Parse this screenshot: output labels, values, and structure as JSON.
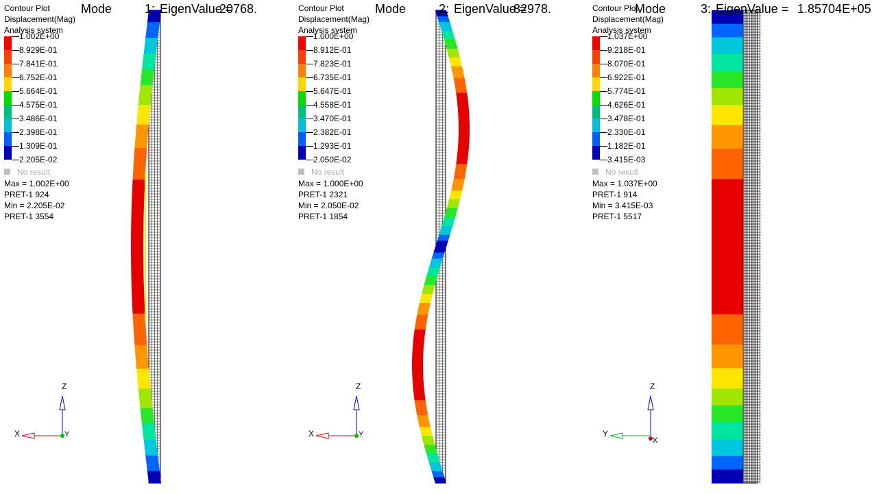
{
  "colors": {
    "contour_bands": [
      "#0000b4",
      "#0064ff",
      "#00c8dc",
      "#00e6a0",
      "#28e628",
      "#a0e600",
      "#ffe600",
      "#ff9600",
      "#ff6400",
      "#e60000"
    ],
    "legend_swatches": [
      "#ff0000",
      "#ff4000",
      "#ff8000",
      "#ffd700",
      "#00e000",
      "#00c080",
      "#00c0e0",
      "#0060ff",
      "#0000c0"
    ],
    "mesh_line": "#000000",
    "triad_x": "#e00000",
    "triad_y": "#00c000",
    "triad_z": "#0000ff"
  },
  "panels": [
    {
      "title": {
        "mode_word": "Mode",
        "mode_number": "1:",
        "eigen_label": "EigenValue =",
        "eigen_value": "20768."
      },
      "legend": {
        "header": [
          "Contour Plot",
          "Displacement(Mag)",
          "Analysis system"
        ],
        "values": [
          "1.002E+00",
          "8.929E-01",
          "7.841E-01",
          "6.752E-01",
          "5.664E-01",
          "4.575E-01",
          "3.486E-01",
          "2.398E-01",
          "1.309E-01",
          "2.205E-02"
        ],
        "no_result": "No result",
        "max": "Max = 1.002E+00",
        "max_node": "PRET-1 924",
        "min": "Min = 2.205E-02",
        "min_node": "PRET-1 3554"
      },
      "triad": {
        "horizontal": "X",
        "vertical": "Z",
        "out_of_plane": "Y"
      }
    },
    {
      "title": {
        "mode_word": "Mode",
        "mode_number": "2:",
        "eigen_label": "EigenValue =",
        "eigen_value": "82978."
      },
      "legend": {
        "header": [
          "Contour Plot",
          "Displacement(Mag)",
          "Analysis system"
        ],
        "values": [
          "1.000E+00",
          "8.912E-01",
          "7.823E-01",
          "6.735E-01",
          "5.647E-01",
          "4.558E-01",
          "3.470E-01",
          "2.382E-01",
          "1.293E-01",
          "2.050E-02"
        ],
        "no_result": "No result",
        "max": "Max = 1.000E+00",
        "max_node": "PRET-1 2321",
        "min": "Min = 2.050E-02",
        "min_node": "PRET-1 1854"
      },
      "triad": {
        "horizontal": "X",
        "vertical": "Z",
        "out_of_plane": "Y"
      }
    },
    {
      "title": {
        "mode_word": "Mode",
        "mode_number": "3:",
        "eigen_label": "EigenValue =",
        "eigen_value": "1.85704E+05"
      },
      "legend": {
        "header": [
          "Contour Plot",
          "Displacement(Mag)",
          "Analysis system"
        ],
        "values": [
          "1.037E+00",
          "9.218E-01",
          "8.070E-01",
          "6.922E-01",
          "5.774E-01",
          "4.626E-01",
          "3.478E-01",
          "2.330E-01",
          "1.182E-01",
          "3.415E-03"
        ],
        "no_result": "No result",
        "max": "Max = 1.037E+00",
        "max_node": "PRET-1 914",
        "min": "Min = 3.415E-03",
        "min_node": "PRET-1 5517"
      },
      "triad": {
        "horizontal": "Y",
        "vertical": "Z",
        "out_of_plane": "X"
      }
    }
  ]
}
